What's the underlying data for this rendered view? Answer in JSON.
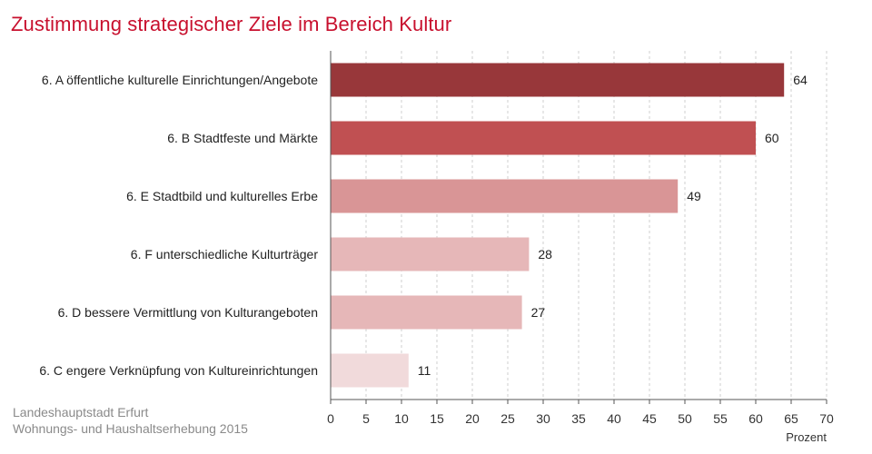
{
  "chart_data": {
    "type": "bar",
    "orientation": "horizontal",
    "title": "Zustimmung strategischer Ziele im Bereich Kultur",
    "xlabel": "Prozent",
    "xlim": [
      0,
      70
    ],
    "xticks": [
      0,
      5,
      10,
      15,
      20,
      25,
      30,
      35,
      40,
      45,
      50,
      55,
      60,
      65,
      70
    ],
    "grid": "vertical dashed",
    "categories": [
      "6. A öffentliche kulturelle Einrichtungen/Angebote",
      "6. B Stadtfeste und Märkte",
      "6. E Stadtbild und kulturelles Erbe",
      "6. F unterschiedliche Kulturträger",
      "6. D bessere Vermittlung von Kulturangeboten",
      "6. C engere Verknüpfung von Kultureinrichtungen"
    ],
    "values": [
      64,
      60,
      49,
      28,
      27,
      11
    ],
    "colors": [
      "#98373a",
      "#c05052",
      "#d99596",
      "#e6b7b8",
      "#e6b7b8",
      "#f1dadb"
    ]
  },
  "source": {
    "line1": "Landeshauptstadt  Erfurt",
    "line2": "Wohnungs- und Haushaltserhebung  2015"
  }
}
